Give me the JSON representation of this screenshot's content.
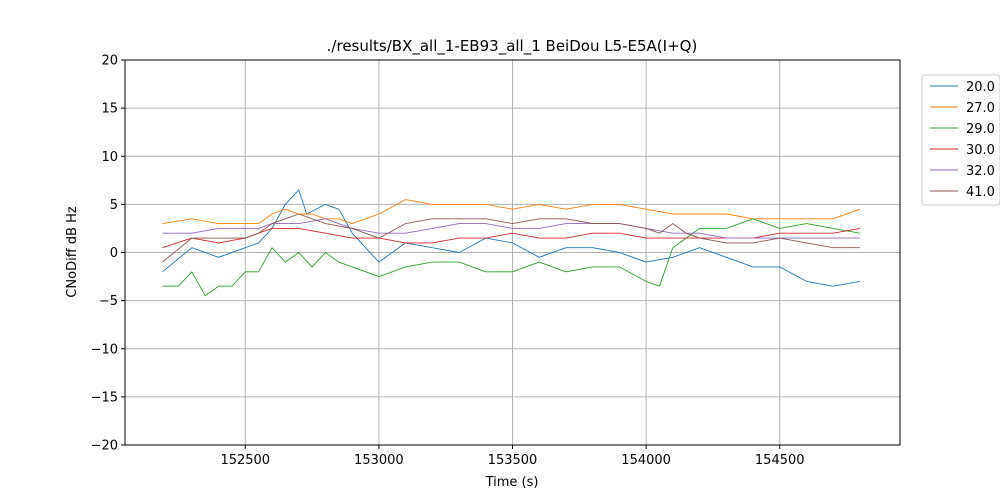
{
  "chart_data": {
    "type": "line",
    "title": "./results/BX_all_1-EB93_all_1 BeiDou L5-E5A(I+Q)",
    "xlabel": "Time (s)",
    "ylabel": "CNoDiff dB Hz",
    "xlim": [
      152050,
      154950
    ],
    "ylim": [
      -20,
      20
    ],
    "xticks": [
      152500,
      153000,
      153500,
      154000,
      154500
    ],
    "xtick_labels": [
      "152500",
      "153000",
      "153500",
      "154000",
      "154500"
    ],
    "yticks": [
      -20,
      -15,
      -10,
      -5,
      0,
      5,
      10,
      15,
      20
    ],
    "ytick_labels": [
      "−20",
      "−15",
      "−10",
      "−5",
      "0",
      "5",
      "10",
      "15",
      "20"
    ],
    "grid": true,
    "legend_position": "outside-right-top",
    "series": [
      {
        "name": "20.0",
        "color": "#1f77b4",
        "x": [
          152190,
          152300,
          152400,
          152500,
          152550,
          152600,
          152650,
          152700,
          152730,
          152800,
          152850,
          152900,
          153000,
          153100,
          153200,
          153300,
          153400,
          153500,
          153600,
          153700,
          153800,
          153900,
          154000,
          154100,
          154150,
          154200,
          154300,
          154400,
          154500,
          154600,
          154700,
          154800
        ],
        "y": [
          -2.0,
          0.5,
          -0.5,
          0.5,
          1.0,
          2.5,
          5.0,
          6.5,
          4.0,
          5.0,
          4.5,
          2.0,
          -1.0,
          1.0,
          0.5,
          0.0,
          1.5,
          1.0,
          -0.5,
          0.5,
          0.5,
          0.0,
          -1.0,
          -0.5,
          0.0,
          0.5,
          -0.5,
          -1.5,
          -1.5,
          -3.0,
          -3.5,
          -3.0
        ]
      },
      {
        "name": "27.0",
        "color": "#ff7f0e",
        "x": [
          152190,
          152300,
          152400,
          152500,
          152550,
          152600,
          152650,
          152700,
          152750,
          152800,
          152850,
          152900,
          153000,
          153100,
          153200,
          153300,
          153400,
          153500,
          153600,
          153700,
          153800,
          153900,
          154000,
          154100,
          154150,
          154200,
          154300,
          154400,
          154500,
          154600,
          154700,
          154800
        ],
        "y": [
          3.0,
          3.5,
          3.0,
          3.0,
          3.0,
          4.0,
          4.5,
          4.0,
          4.0,
          3.5,
          3.5,
          3.0,
          4.0,
          5.5,
          5.0,
          5.0,
          5.0,
          4.5,
          5.0,
          4.5,
          5.0,
          5.0,
          4.5,
          4.0,
          4.0,
          4.0,
          4.0,
          3.5,
          3.5,
          3.5,
          3.5,
          4.5
        ]
      },
      {
        "name": "29.0",
        "color": "#2ca02c",
        "x": [
          152190,
          152250,
          152300,
          152350,
          152400,
          152450,
          152500,
          152550,
          152600,
          152650,
          152700,
          152750,
          152800,
          152850,
          152900,
          153000,
          153100,
          153200,
          153300,
          153400,
          153500,
          153600,
          153700,
          153800,
          153900,
          154000,
          154050,
          154100,
          154150,
          154200,
          154300,
          154400,
          154500,
          154600,
          154700,
          154800
        ],
        "y": [
          -3.5,
          -3.5,
          -2.0,
          -4.5,
          -3.5,
          -3.5,
          -2.0,
          -2.0,
          0.5,
          -1.0,
          0.0,
          -1.5,
          0.0,
          -1.0,
          -1.5,
          -2.5,
          -1.5,
          -1.0,
          -1.0,
          -2.0,
          -2.0,
          -1.0,
          -2.0,
          -1.5,
          -1.5,
          -3.0,
          -3.5,
          0.5,
          1.5,
          2.5,
          2.5,
          3.5,
          2.5,
          3.0,
          2.5,
          2.0
        ]
      },
      {
        "name": "30.0",
        "color": "#d62728",
        "x": [
          152190,
          152300,
          152400,
          152500,
          152550,
          152600,
          152700,
          152800,
          152900,
          153000,
          153100,
          153200,
          153300,
          153400,
          153500,
          153600,
          153700,
          153800,
          153900,
          154000,
          154100,
          154200,
          154300,
          154400,
          154500,
          154600,
          154700,
          154800
        ],
        "y": [
          0.5,
          1.5,
          1.0,
          1.5,
          2.0,
          2.5,
          2.5,
          2.0,
          1.5,
          1.5,
          1.0,
          1.0,
          1.5,
          1.5,
          2.0,
          1.5,
          1.5,
          2.0,
          2.0,
          1.5,
          1.5,
          1.5,
          1.5,
          1.5,
          2.0,
          2.0,
          2.0,
          2.5
        ]
      },
      {
        "name": "32.0",
        "color": "#9467bd",
        "x": [
          152190,
          152300,
          152400,
          152500,
          152550,
          152600,
          152700,
          152800,
          152900,
          153000,
          153100,
          153200,
          153300,
          153400,
          153500,
          153600,
          153700,
          153800,
          153900,
          154000,
          154100,
          154200,
          154300,
          154400,
          154500,
          154600,
          154700,
          154800
        ],
        "y": [
          2.0,
          2.0,
          2.5,
          2.5,
          2.5,
          3.0,
          3.0,
          3.5,
          2.5,
          2.0,
          2.0,
          2.5,
          3.0,
          3.0,
          2.5,
          2.5,
          3.0,
          3.0,
          3.0,
          2.5,
          2.0,
          2.0,
          1.5,
          1.5,
          1.5,
          1.5,
          1.5,
          1.5
        ]
      },
      {
        "name": "41.0",
        "color": "#8c564b",
        "x": [
          152190,
          152300,
          152400,
          152500,
          152550,
          152600,
          152650,
          152700,
          152800,
          152900,
          153000,
          153100,
          153200,
          153300,
          153400,
          153500,
          153600,
          153700,
          153800,
          153900,
          154000,
          154050,
          154100,
          154150,
          154200,
          154300,
          154400,
          154500,
          154600,
          154700,
          154800
        ],
        "y": [
          -1.0,
          1.5,
          1.5,
          1.5,
          2.0,
          3.0,
          3.5,
          4.0,
          3.0,
          2.5,
          1.5,
          3.0,
          3.5,
          3.5,
          3.5,
          3.0,
          3.5,
          3.5,
          3.0,
          3.0,
          2.5,
          2.0,
          3.0,
          2.0,
          1.5,
          1.0,
          1.0,
          1.5,
          1.0,
          0.5,
          0.5
        ]
      }
    ]
  }
}
